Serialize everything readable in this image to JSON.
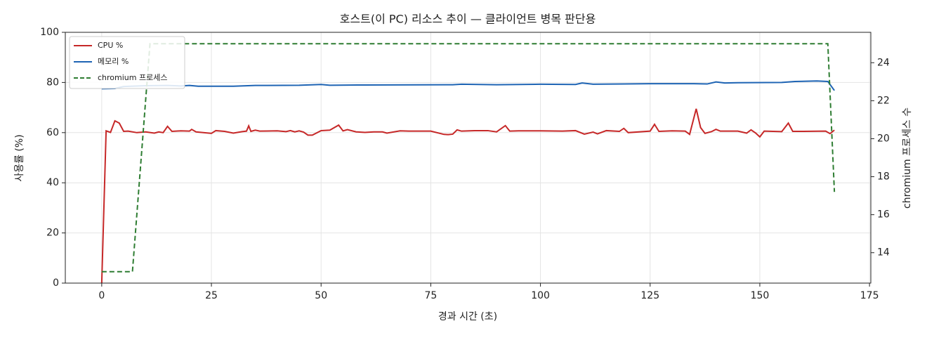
{
  "chart_data": {
    "type": "line",
    "title": "호스트(이 PC) 리소스 추이 — 클라이언트 병목 판단용",
    "xlabel": "경과 시간 (초)",
    "ylabel": "사용률 (%)",
    "y2label": "chromium 프로세스 수",
    "xlim": [
      -8.3,
      175.3
    ],
    "xticks": [
      0,
      25,
      50,
      75,
      100,
      125,
      150,
      175
    ],
    "ylim": [
      0,
      100
    ],
    "yticks": [
      0,
      20,
      40,
      60,
      80,
      100
    ],
    "y2lim": [
      12.4,
      25.6
    ],
    "y2ticks": [
      14,
      16,
      18,
      20,
      22,
      24
    ],
    "grid": true,
    "legend": "upper left",
    "series": [
      {
        "name": "CPU %",
        "color": "#c62828",
        "linestyle": "solid",
        "x": [
          0,
          1,
          2,
          3,
          4,
          5,
          6,
          8,
          10,
          12,
          13,
          14,
          15,
          16,
          18,
          20,
          20.5,
          21.5,
          25,
          26,
          28,
          30,
          32,
          33,
          33.5,
          34,
          35,
          36,
          40,
          42,
          43,
          44,
          45,
          46,
          47,
          48,
          50,
          52,
          54,
          55,
          56,
          58,
          60,
          62,
          64,
          65,
          68,
          70,
          75,
          78,
          79,
          80,
          81,
          82,
          85,
          88,
          90,
          92,
          93,
          95,
          100,
          105,
          108,
          110,
          112,
          113,
          115,
          118,
          119,
          120,
          125,
          126,
          127,
          130,
          133,
          134,
          135.5,
          136.5,
          137.5,
          139,
          140,
          141,
          145,
          147,
          148,
          149,
          150,
          151,
          155,
          156.5,
          157.5,
          160,
          165,
          166,
          167
        ],
        "values": [
          0,
          60.7,
          60.1,
          64.7,
          63.8,
          60.5,
          60.6,
          60,
          60.3,
          59.8,
          60.3,
          60,
          62.5,
          60.5,
          60.7,
          60.6,
          61.3,
          60.3,
          59.7,
          60.8,
          60.5,
          59.8,
          60.4,
          60.6,
          62.7,
          60.5,
          61,
          60.6,
          60.7,
          60.4,
          60.8,
          60.3,
          60.7,
          60.2,
          59,
          59,
          60.8,
          61,
          63,
          60.7,
          61.2,
          60.3,
          60.1,
          60.3,
          60.3,
          59.8,
          60.7,
          60.6,
          60.6,
          59.3,
          59.2,
          59.4,
          61.1,
          60.6,
          60.8,
          60.8,
          60.3,
          62.8,
          60.6,
          60.7,
          60.7,
          60.6,
          60.8,
          59.4,
          60.2,
          59.5,
          60.8,
          60.5,
          61.7,
          60,
          60.6,
          63.3,
          60.5,
          60.7,
          60.6,
          59.3,
          69.5,
          62,
          59.7,
          60.4,
          61.3,
          60.6,
          60.6,
          59.8,
          61.1,
          59.9,
          58.3,
          60.6,
          60.4,
          63.8,
          60.5,
          60.5,
          60.6,
          59.6,
          61
        ]
      },
      {
        "name": "메모리 %",
        "color": "#1e64b4",
        "linestyle": "solid",
        "x": [
          0,
          3,
          5,
          10,
          15,
          18,
          20,
          22,
          30,
          35,
          45,
          50,
          52,
          60,
          80,
          82,
          90,
          100,
          108,
          109.5,
          112,
          125,
          135,
          138,
          140,
          142,
          145,
          155,
          158,
          163,
          165.5,
          167
        ],
        "values": [
          77.5,
          77.6,
          78.4,
          78.7,
          78.8,
          78.6,
          78.8,
          78.5,
          78.5,
          78.8,
          78.9,
          79.2,
          78.9,
          79,
          79.1,
          79.3,
          79.1,
          79.3,
          79.2,
          79.8,
          79.3,
          79.5,
          79.5,
          79.4,
          80.2,
          79.8,
          79.9,
          80,
          80.4,
          80.6,
          80.4,
          76.8
        ]
      },
      {
        "name": "chromium 프로세스",
        "color": "#2e7d32",
        "linestyle": "dashed",
        "axis": "y2",
        "x": [
          0,
          7,
          11,
          165.5,
          167
        ],
        "values": [
          13,
          13,
          25,
          25,
          17.2
        ]
      }
    ]
  }
}
